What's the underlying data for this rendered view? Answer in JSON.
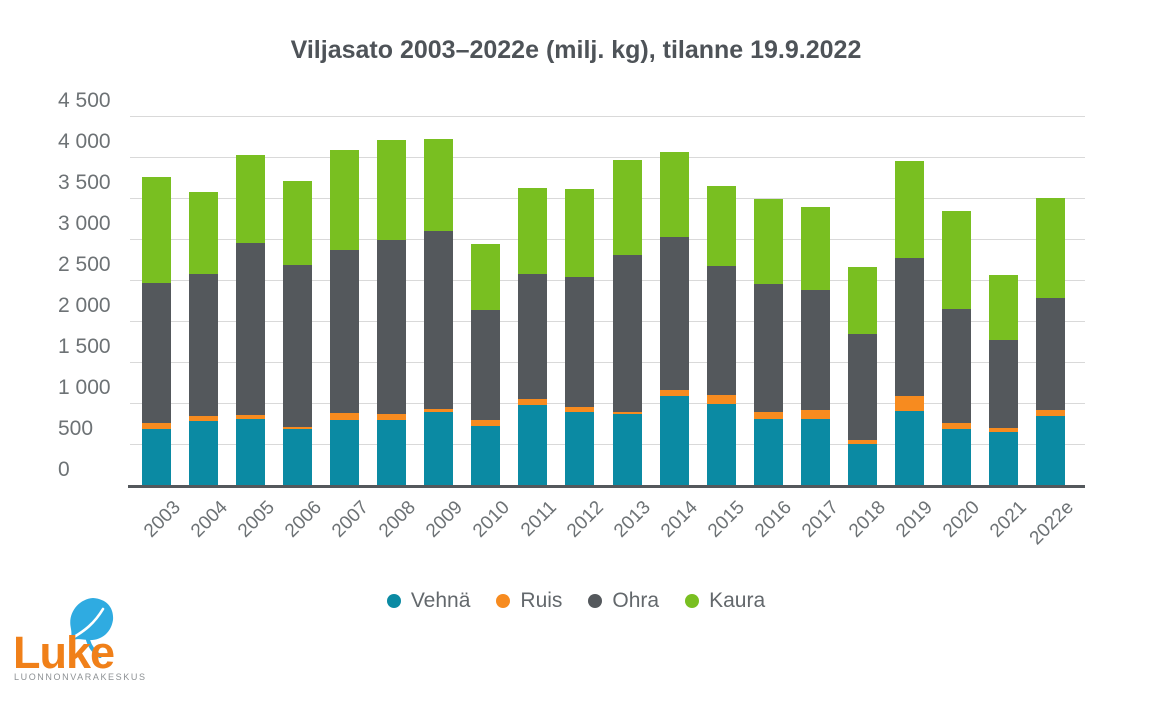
{
  "title": "Viljasato 2003–2022e (milj. kg), tilanne 19.9.2022",
  "chart_data": {
    "type": "bar",
    "stacked": true,
    "title": "Viljasato 2003–2022e (milj. kg), tilanne 19.9.2022",
    "xlabel": "",
    "ylabel": "",
    "ylim": [
      0,
      4500
    ],
    "ytick_step": 500,
    "ytick_labels": [
      "0",
      "500",
      "1 000",
      "1 500",
      "2 000",
      "2 500",
      "3 000",
      "3 500",
      "4 000",
      "4 500"
    ],
    "grid": true,
    "legend_position": "bottom-center",
    "categories": [
      "2003",
      "2004",
      "2005",
      "2006",
      "2007",
      "2008",
      "2009",
      "2010",
      "2011",
      "2012",
      "2013",
      "2014",
      "2015",
      "2016",
      "2017",
      "2018",
      "2019",
      "2020",
      "2021",
      "2022e"
    ],
    "series": [
      {
        "name": "Vehnä",
        "color": "#0b8aa3",
        "values": [
          677,
          782,
          801,
          684,
          797,
          788,
          887,
          724,
          974,
          887,
          870,
          1089,
          992,
          809,
          802,
          503,
          897,
          681,
          641,
          845
        ]
      },
      {
        "name": "Ruis",
        "color": "#f78b1f",
        "values": [
          75,
          62,
          51,
          25,
          87,
          74,
          42,
          69,
          78,
          66,
          26,
          75,
          108,
          87,
          112,
          43,
          185,
          71,
          54,
          75
        ]
      },
      {
        "name": "Ohra",
        "color": "#54585c",
        "values": [
          1713,
          1725,
          2103,
          1972,
          1984,
          2129,
          2171,
          1340,
          1525,
          1581,
          1904,
          1859,
          1569,
          1557,
          1467,
          1297,
          1682,
          1391,
          1069,
          1360
        ]
      },
      {
        "name": "Kaura",
        "color": "#79bf21",
        "values": [
          1295,
          1002,
          1073,
          1029,
          1222,
          1213,
          1115,
          810,
          1043,
          1073,
          1159,
          1043,
          980,
          1040,
          1014,
          818,
          1189,
          1193,
          791,
          1220
        ]
      }
    ]
  },
  "colors": {
    "grid": "#d9d9d9",
    "axis": "#54585c",
    "title_text": "#4e5358",
    "tick_text": "#6d7275",
    "legend_text": "#63686c"
  },
  "logo": {
    "name": "Luke",
    "subtitle": "LUONNONVARAKESKUS",
    "orange": "#f08019",
    "blue": "#2fabe1"
  }
}
